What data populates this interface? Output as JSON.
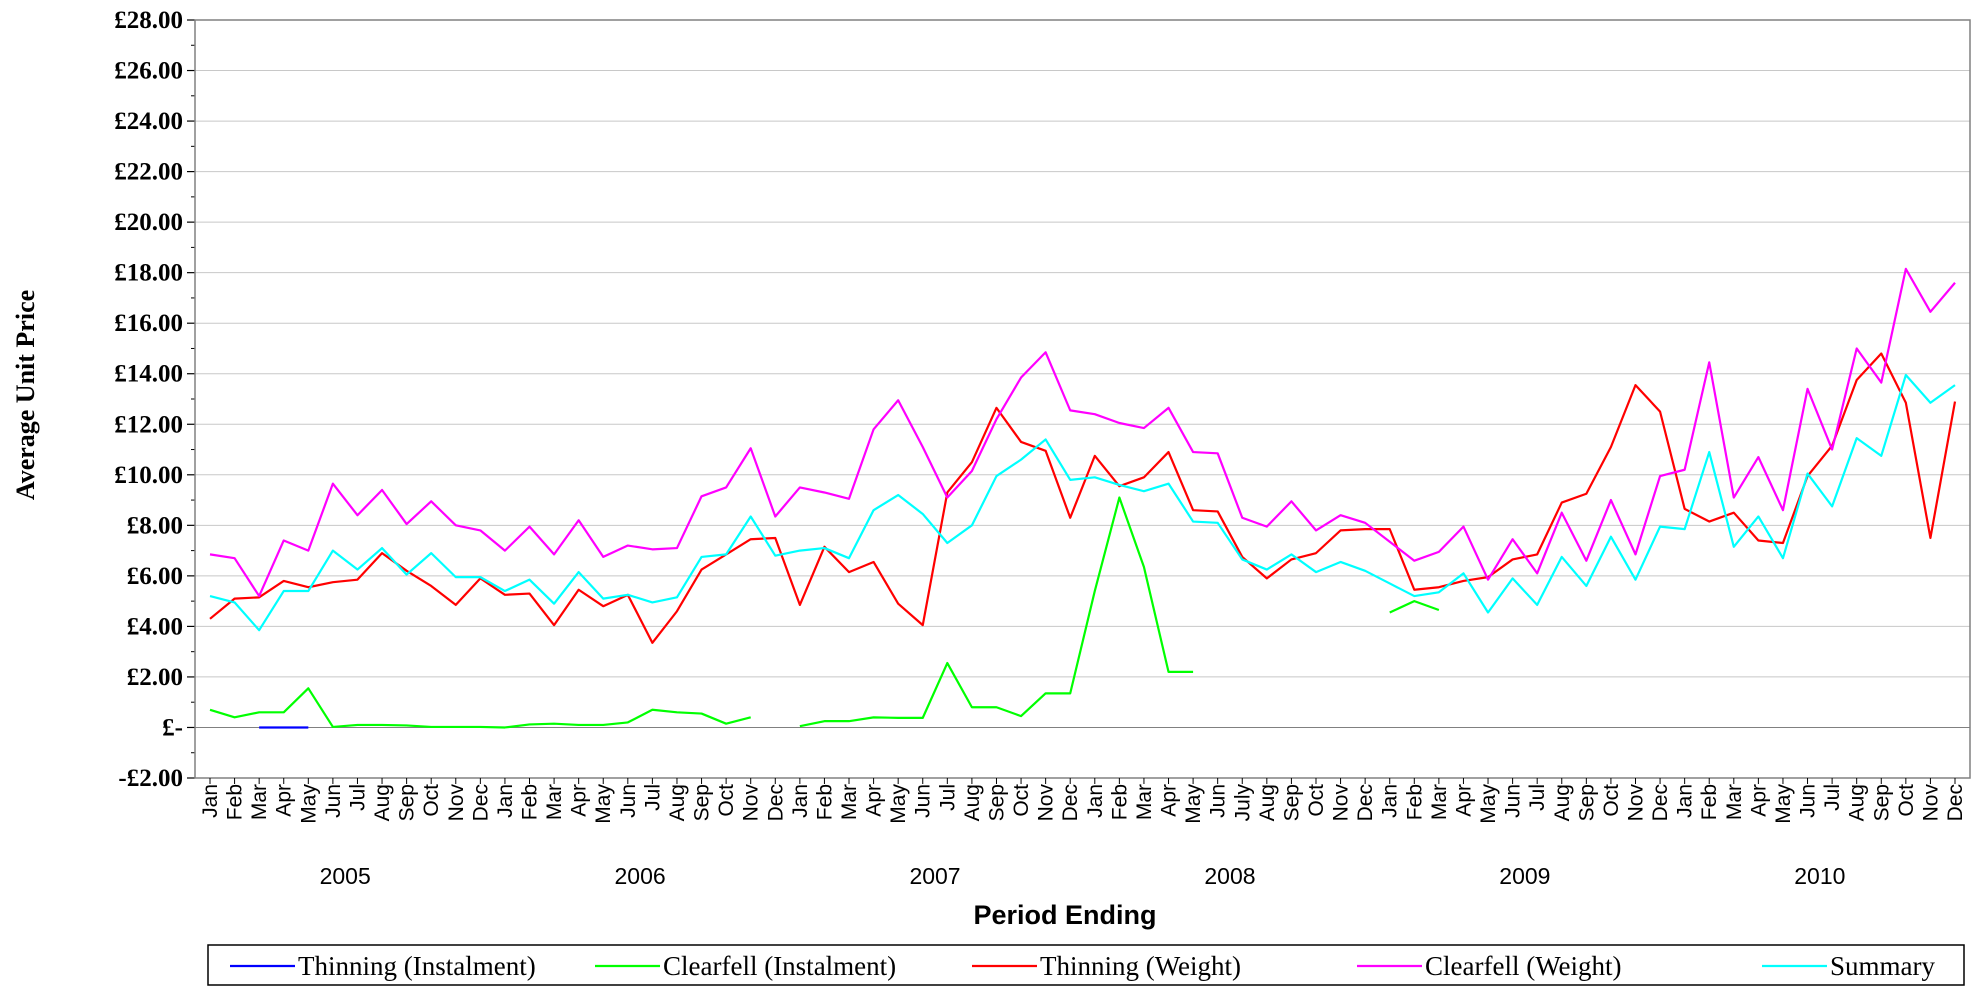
{
  "chart_data": {
    "type": "line",
    "title": "",
    "xlabel": "Period Ending",
    "ylabel": "Average Unit Price",
    "ylim": [
      -2,
      28
    ],
    "yticks": [
      -2,
      0,
      2,
      4,
      6,
      8,
      10,
      12,
      14,
      16,
      18,
      20,
      22,
      24,
      26,
      28
    ],
    "ytick_labels": [
      "-£2.00",
      "£-",
      "£2.00",
      "£4.00",
      "£6.00",
      "£8.00",
      "£10.00",
      "£12.00",
      "£14.00",
      "£16.00",
      "£18.00",
      "£20.00",
      "£22.00",
      "£24.00",
      "£26.00",
      "£28.00"
    ],
    "grid": true,
    "legend": "bottom",
    "categories": [
      "Jan",
      "Feb",
      "Mar",
      "Apr",
      "May",
      "Jun",
      "Jul",
      "Aug",
      "Sep",
      "Oct",
      "Nov",
      "Dec",
      "Jan",
      "Feb",
      "Mar",
      "Apr",
      "May",
      "Jun",
      "Jul",
      "Aug",
      "Sep",
      "Oct",
      "Nov",
      "Dec",
      "Jan",
      "Feb",
      "Mar",
      "Apr",
      "May",
      "Jun",
      "Jul",
      "Aug",
      "Sep",
      "Oct",
      "Nov",
      "Dec",
      "Jan",
      "Feb",
      "Mar",
      "Apr",
      "May",
      "Jun",
      "July",
      "Aug",
      "Sep",
      "Oct",
      "Nov",
      "Dec",
      "Jan",
      "Feb",
      "Mar",
      "Apr",
      "May",
      "Jun",
      "Jul",
      "Aug",
      "Sep",
      "Oct",
      "Nov",
      "Dec",
      "Jan",
      "Feb",
      "Mar",
      "Apr",
      "May",
      "Jun",
      "Jul",
      "Aug",
      "Sep",
      "Oct",
      "Nov",
      "Dec"
    ],
    "year_groups": [
      {
        "label": "2005",
        "start": 0,
        "end": 11
      },
      {
        "label": "2006",
        "start": 12,
        "end": 23
      },
      {
        "label": "2007",
        "start": 24,
        "end": 35
      },
      {
        "label": "2008",
        "start": 36,
        "end": 47
      },
      {
        "label": "2009",
        "start": 48,
        "end": 59
      },
      {
        "label": "2010",
        "start": 60,
        "end": 71
      }
    ],
    "series": [
      {
        "name": "Thinning (Instalment)",
        "color": "#0000ff",
        "values": [
          null,
          null,
          0,
          0,
          0,
          null,
          null,
          null,
          null,
          null,
          null,
          null,
          null,
          null,
          null,
          null,
          null,
          null,
          null,
          null,
          null,
          null,
          null,
          null,
          null,
          null,
          null,
          null,
          null,
          null,
          null,
          null,
          null,
          null,
          null,
          null,
          null,
          null,
          null,
          null,
          null,
          null,
          null,
          null,
          null,
          null,
          null,
          null,
          null,
          null,
          null,
          null,
          null,
          null,
          null,
          null,
          null,
          null,
          null,
          null,
          null,
          null,
          null,
          null,
          null,
          null,
          null,
          null,
          null,
          null,
          null,
          null
        ]
      },
      {
        "name": "Clearfell (Instalment)",
        "color": "#00ff00",
        "values": [
          0.7,
          0.4,
          0.6,
          0.6,
          1.55,
          0.02,
          0.1,
          0.1,
          0.08,
          0.02,
          0.02,
          0.02,
          0.0,
          0.12,
          0.15,
          0.1,
          0.1,
          0.2,
          0.7,
          0.6,
          0.55,
          0.15,
          0.4,
          null,
          0.05,
          0.25,
          0.25,
          0.4,
          0.38,
          0.38,
          2.55,
          0.8,
          0.8,
          0.45,
          1.35,
          1.35,
          5.4,
          9.1,
          6.35,
          2.2,
          2.2,
          null,
          null,
          null,
          null,
          null,
          null,
          null,
          4.55,
          5.0,
          4.65,
          null,
          null,
          null,
          null,
          null,
          null,
          null,
          null,
          null,
          null,
          null,
          null,
          null,
          null,
          null,
          null,
          null,
          null,
          null,
          null,
          null
        ]
      },
      {
        "name": "Thinning (Weight)",
        "color": "#ff0000",
        "values": [
          4.3,
          5.1,
          5.15,
          5.8,
          5.55,
          5.75,
          5.85,
          6.9,
          6.2,
          5.6,
          4.85,
          5.9,
          5.25,
          5.3,
          4.05,
          5.45,
          4.8,
          5.25,
          3.35,
          4.6,
          6.25,
          6.85,
          7.45,
          7.5,
          4.85,
          7.15,
          6.15,
          6.55,
          4.9,
          4.05,
          9.3,
          10.5,
          12.65,
          11.3,
          10.95,
          8.3,
          10.75,
          9.55,
          9.9,
          10.9,
          8.6,
          8.55,
          6.75,
          5.9,
          6.65,
          6.9,
          7.8,
          7.85,
          7.85,
          5.45,
          5.55,
          5.8,
          5.95,
          6.65,
          6.85,
          8.9,
          9.25,
          11.1,
          13.55,
          12.5,
          8.65,
          8.15,
          8.5,
          7.4,
          7.3,
          9.95,
          11.15,
          13.75,
          14.8,
          12.85,
          7.5,
          12.9
        ]
      },
      {
        "name": "Clearfell (Weight)",
        "color": "#ff00ff",
        "values": [
          6.85,
          6.7,
          5.2,
          7.4,
          7.0,
          9.65,
          8.4,
          9.4,
          8.05,
          8.95,
          8.0,
          7.8,
          7.0,
          7.95,
          6.85,
          8.2,
          6.75,
          7.2,
          7.05,
          7.1,
          9.15,
          9.5,
          11.05,
          8.35,
          9.5,
          9.3,
          9.05,
          11.8,
          12.95,
          11.1,
          9.1,
          10.15,
          12.2,
          13.85,
          14.85,
          12.55,
          12.4,
          12.05,
          11.85,
          12.65,
          10.9,
          10.85,
          8.3,
          7.95,
          8.95,
          7.8,
          8.4,
          8.1,
          7.35,
          6.6,
          6.95,
          7.95,
          5.85,
          7.45,
          6.1,
          8.5,
          6.6,
          9.0,
          6.85,
          9.95,
          10.2,
          14.45,
          9.1,
          10.7,
          8.6,
          13.4,
          11.0,
          15.0,
          13.65,
          18.15,
          16.45,
          17.6
        ]
      },
      {
        "name": "Summary",
        "color": "#00ffff",
        "values": [
          5.2,
          4.95,
          3.85,
          5.4,
          5.4,
          7.0,
          6.25,
          7.1,
          6.05,
          6.9,
          5.95,
          5.95,
          5.4,
          5.85,
          4.9,
          6.15,
          5.1,
          5.25,
          4.95,
          5.15,
          6.75,
          6.85,
          8.35,
          6.8,
          7.0,
          7.1,
          6.7,
          8.6,
          9.2,
          8.45,
          7.3,
          8.0,
          9.95,
          10.6,
          11.4,
          9.8,
          9.9,
          9.6,
          9.35,
          9.65,
          8.15,
          8.1,
          6.65,
          6.25,
          6.85,
          6.15,
          6.55,
          6.2,
          5.7,
          5.2,
          5.35,
          6.1,
          4.55,
          5.9,
          4.85,
          6.75,
          5.6,
          7.55,
          5.85,
          7.95,
          7.85,
          10.9,
          7.15,
          8.35,
          6.7,
          10.05,
          8.75,
          11.45,
          10.75,
          13.95,
          12.85,
          13.55
        ]
      }
    ]
  }
}
